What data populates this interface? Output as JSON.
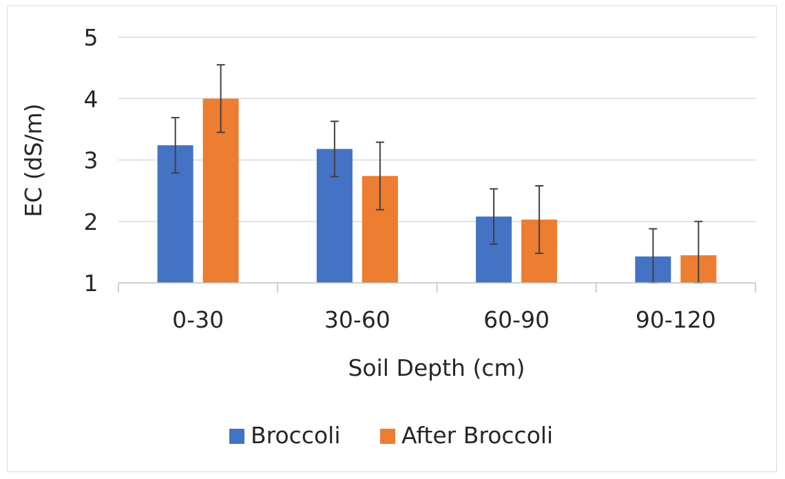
{
  "chart_data": {
    "type": "bar",
    "title": "",
    "xlabel": "Soil Depth (cm)",
    "ylabel": "EC (dS/m)",
    "ylim": [
      1,
      5
    ],
    "yticks": [
      1,
      2,
      3,
      4,
      5
    ],
    "grid": true,
    "legend_position": "bottom",
    "categories": [
      "0-30",
      "30-60",
      "60-90",
      "90-120"
    ],
    "series": [
      {
        "name": "Broccoli",
        "color": "#4472C4",
        "values": [
          3.24,
          3.18,
          2.08,
          1.43
        ],
        "errors": [
          0.45,
          0.45,
          0.45,
          0.45
        ]
      },
      {
        "name": "After Broccoli",
        "color": "#ED7D31",
        "values": [
          4.0,
          2.74,
          2.03,
          1.45
        ],
        "errors": [
          0.55,
          0.55,
          0.55,
          0.55
        ]
      }
    ]
  }
}
